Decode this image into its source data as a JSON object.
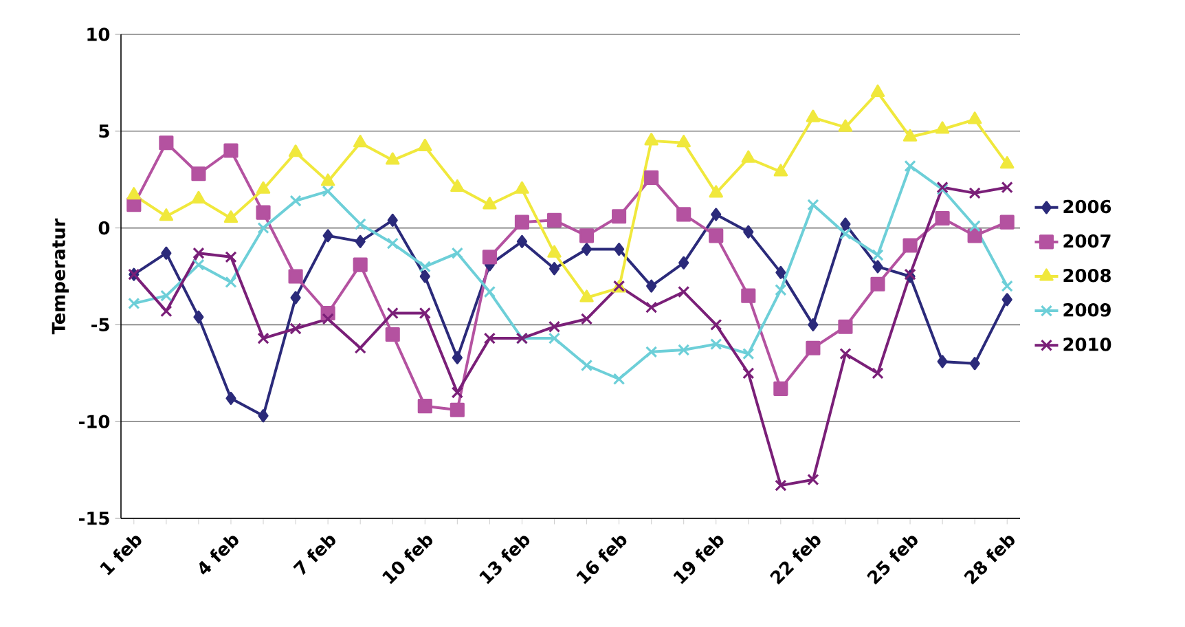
{
  "chart_data": {
    "type": "line",
    "ylabel": "Temperatur",
    "categories": [
      "1 feb",
      null,
      null,
      "4 feb",
      null,
      null,
      "7 feb",
      null,
      null,
      "10 feb",
      null,
      null,
      "13 feb",
      null,
      null,
      "16 feb",
      null,
      null,
      "19 feb",
      null,
      null,
      "22 feb",
      null,
      null,
      "25 feb",
      null,
      null,
      "28 feb"
    ],
    "series": [
      {
        "name": "2006",
        "color": "#2b2a7a",
        "marker": "diamond",
        "values": [
          -2.4,
          -1.3,
          -4.6,
          -8.8,
          -9.7,
          -3.6,
          -0.4,
          -0.7,
          0.4,
          -2.5,
          -6.7,
          -1.9,
          -0.7,
          -2.1,
          -1.1,
          -1.1,
          -3.0,
          -1.8,
          0.7,
          -0.2,
          -2.3,
          -5.0,
          0.2,
          -2.0,
          -2.5,
          -6.9,
          -7.0,
          -3.7
        ]
      },
      {
        "name": "2007",
        "color": "#b452a0",
        "marker": "square",
        "values": [
          1.2,
          4.4,
          2.8,
          4.0,
          0.8,
          -2.5,
          -4.4,
          -1.9,
          -5.5,
          -9.2,
          -9.4,
          -1.5,
          0.3,
          0.4,
          -0.4,
          0.6,
          2.6,
          0.7,
          -0.4,
          -3.5,
          -8.3,
          -6.2,
          -5.1,
          -2.9,
          -0.9,
          0.5,
          -0.4,
          0.3
        ]
      },
      {
        "name": "2008",
        "color": "#f0e83c",
        "marker": "triangle",
        "values": [
          1.7,
          0.6,
          1.5,
          0.5,
          2.0,
          3.9,
          2.4,
          4.4,
          3.5,
          4.2,
          2.1,
          1.2,
          2.0,
          -1.3,
          -3.6,
          -3.1,
          4.5,
          4.4,
          1.8,
          3.6,
          2.9,
          5.7,
          5.2,
          7.0,
          4.7,
          5.1,
          5.6,
          3.3
        ]
      },
      {
        "name": "2009",
        "color": "#6dcfd8",
        "marker": "cross",
        "values": [
          -3.9,
          -3.5,
          -1.9,
          -2.8,
          0.0,
          1.4,
          1.9,
          0.2,
          -0.8,
          -2.0,
          -1.3,
          -3.3,
          -5.7,
          -5.7,
          -7.1,
          -7.8,
          -6.4,
          -6.3,
          -6.0,
          -6.5,
          -3.2,
          1.2,
          -0.3,
          -1.4,
          3.2,
          2.0,
          0.1,
          -3.0
        ]
      },
      {
        "name": "2010",
        "color": "#7a1f78",
        "marker": "cross",
        "values": [
          -2.4,
          -4.3,
          -1.3,
          -1.5,
          -5.7,
          -5.2,
          -4.7,
          -6.2,
          -4.4,
          -4.4,
          -8.5,
          -5.7,
          -5.7,
          -5.1,
          -4.7,
          -3.0,
          -4.1,
          -3.3,
          -5.0,
          -7.5,
          -13.3,
          -13.0,
          -6.5,
          -7.5,
          -2.4,
          2.1,
          1.8,
          2.1
        ]
      }
    ],
    "ylim": [
      -15,
      10
    ],
    "yticks": [
      -15,
      -10,
      -5,
      0,
      5,
      10
    ],
    "grid": "y",
    "legend": "right"
  }
}
